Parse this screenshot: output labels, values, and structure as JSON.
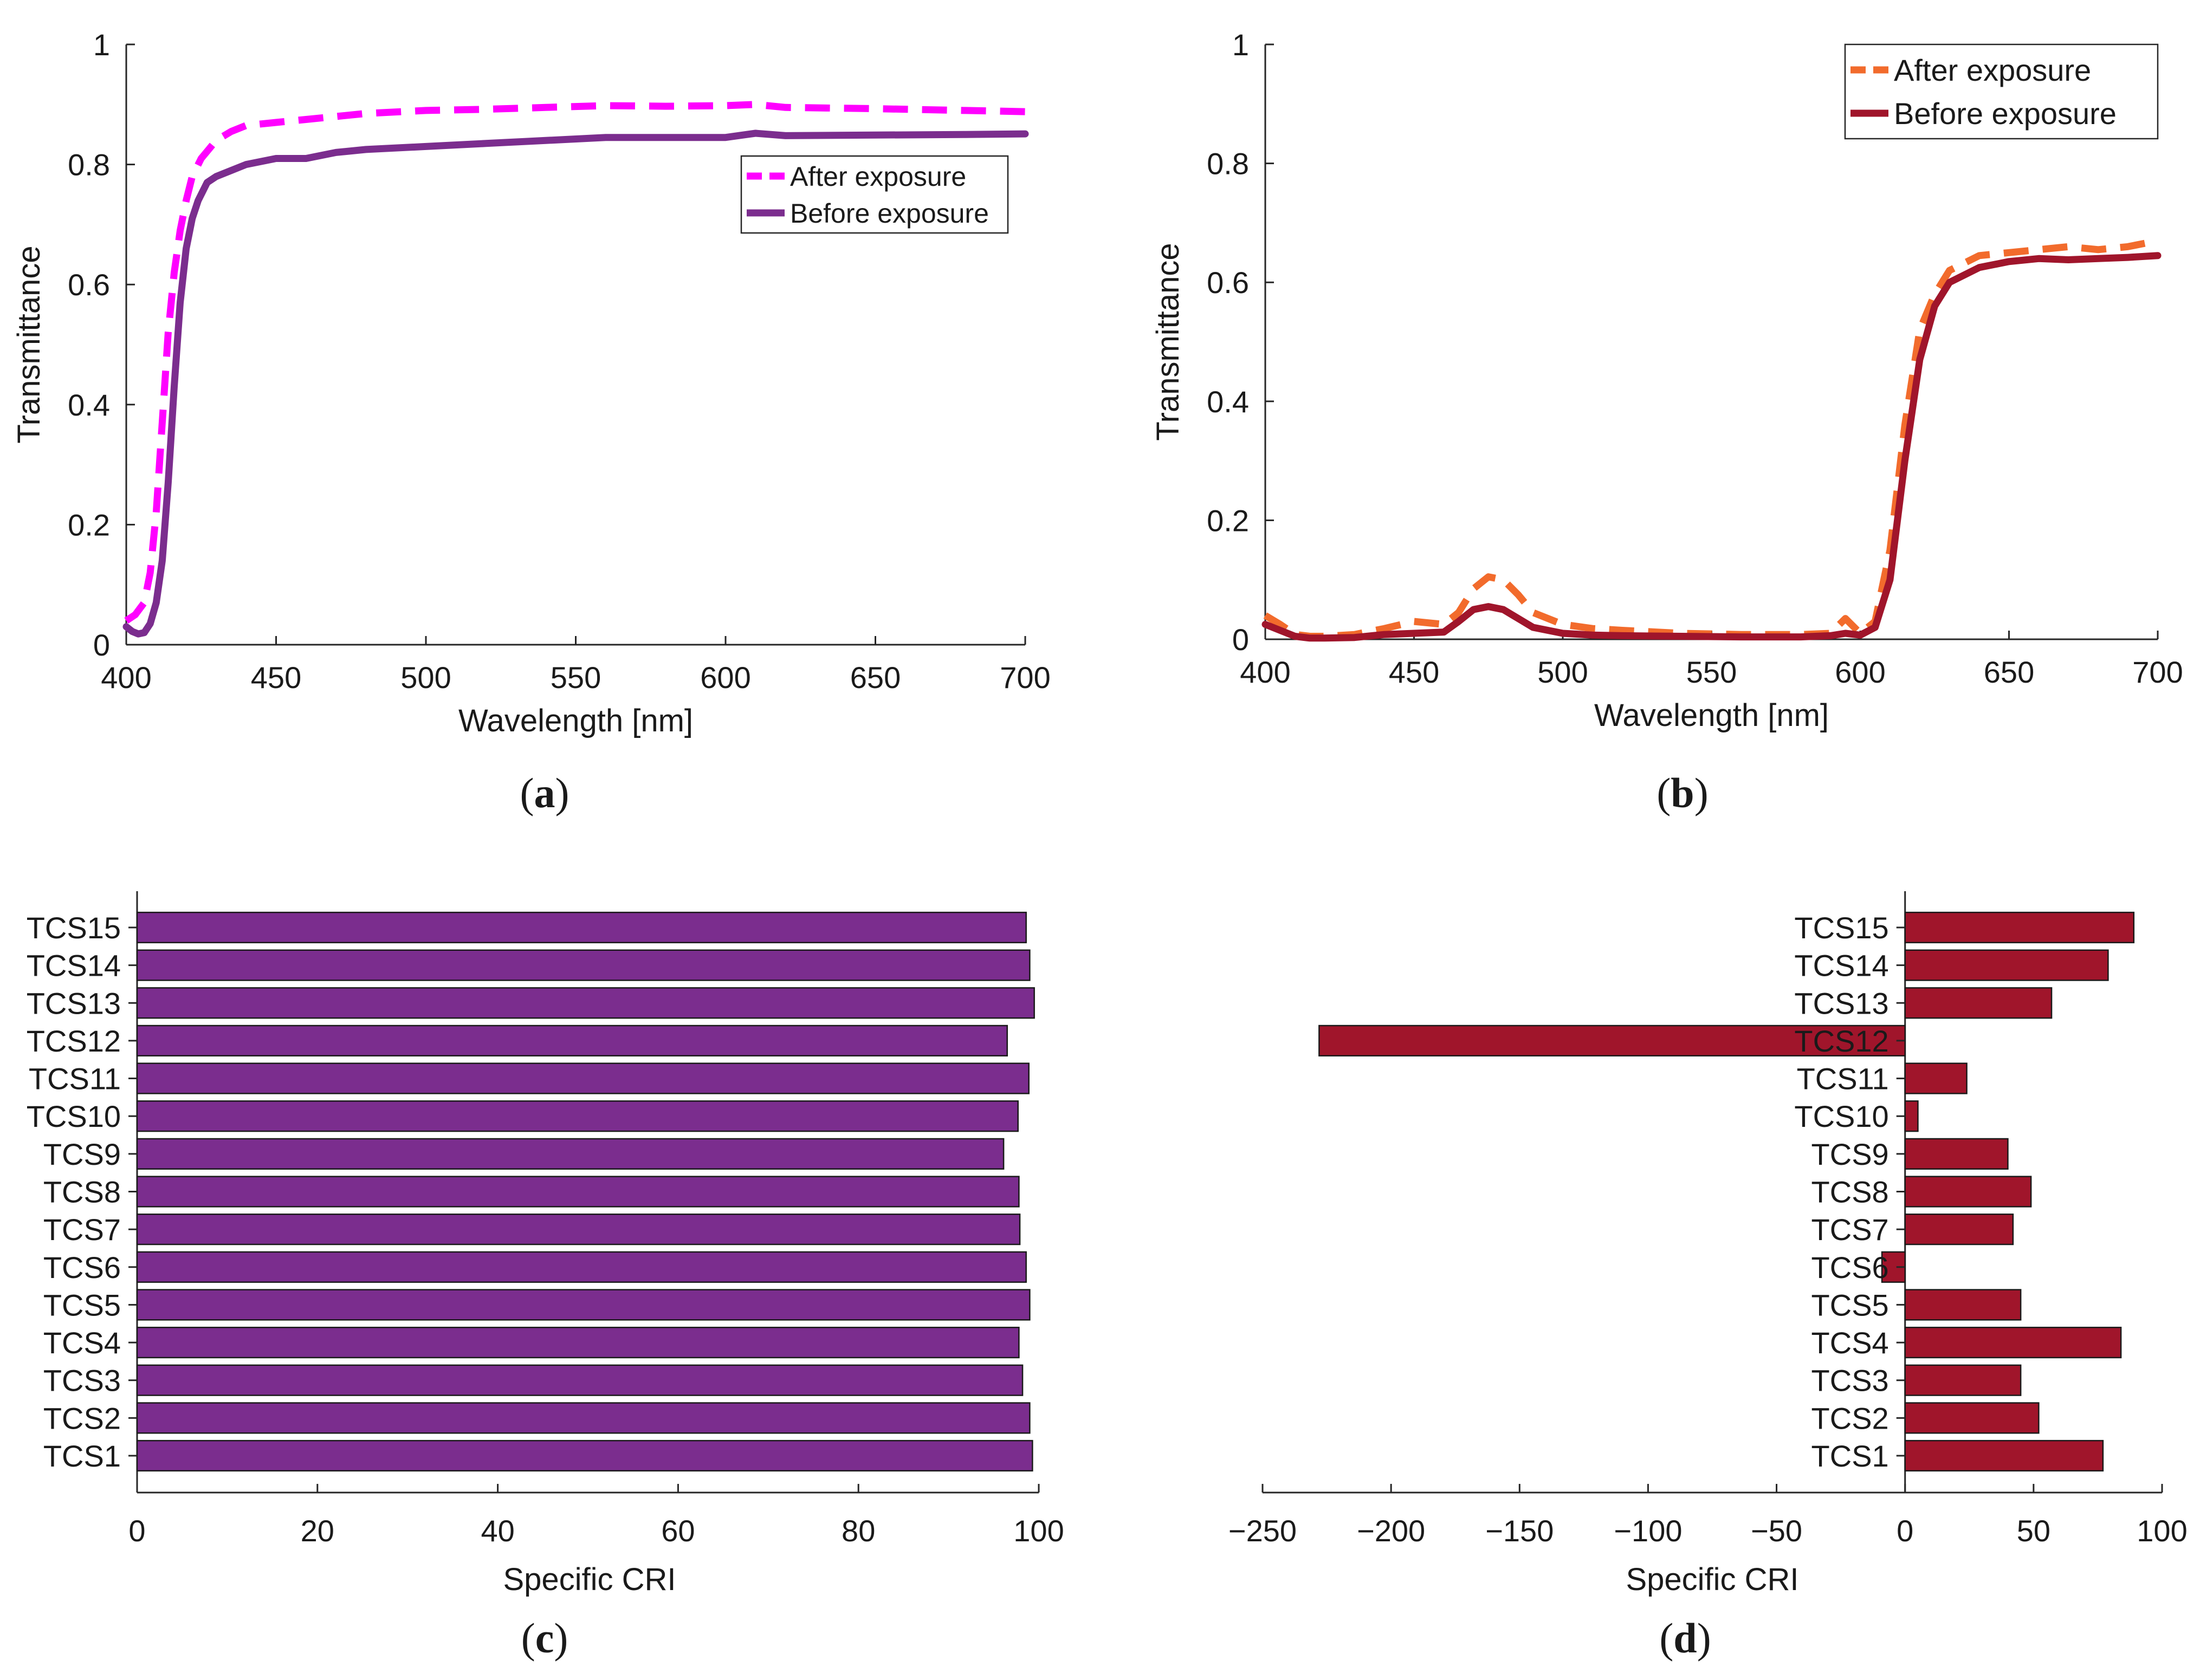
{
  "chart_data": [
    {
      "id": "a",
      "type": "line",
      "caption_letter": "a",
      "xlabel": "Wavelength [nm]",
      "ylabel": "Transmittance",
      "xlim": [
        400,
        700
      ],
      "ylim": [
        0,
        1
      ],
      "xticks": [
        400,
        450,
        500,
        550,
        600,
        650,
        700
      ],
      "xtick_labels": [
        "400",
        "450",
        "500",
        "550",
        "600",
        "650",
        "700"
      ],
      "yticks": [
        0,
        0.2,
        0.4,
        0.6,
        0.8,
        1
      ],
      "ytick_labels": [
        "0",
        "0.2",
        "0.4",
        "0.6",
        "0.8",
        "1"
      ],
      "legend_position": "top-right-inside",
      "series": [
        {
          "name": "After exposure",
          "color": "#ff00ff",
          "style": "dashed",
          "x": [
            400,
            403,
            406,
            408,
            410,
            412,
            414,
            416,
            418,
            420,
            422,
            425,
            430,
            435,
            440,
            450,
            460,
            470,
            480,
            500,
            520,
            540,
            560,
            580,
            600,
            610,
            620,
            650,
            680,
            700
          ],
          "y": [
            0.04,
            0.05,
            0.07,
            0.12,
            0.22,
            0.37,
            0.52,
            0.62,
            0.69,
            0.74,
            0.78,
            0.81,
            0.84,
            0.855,
            0.865,
            0.87,
            0.875,
            0.88,
            0.885,
            0.89,
            0.892,
            0.895,
            0.898,
            0.897,
            0.898,
            0.9,
            0.895,
            0.893,
            0.89,
            0.888
          ]
        },
        {
          "name": "Before exposure",
          "color": "#7b2d8e",
          "style": "solid",
          "x": [
            400,
            402,
            404,
            406,
            408,
            410,
            412,
            414,
            416,
            418,
            420,
            422,
            424,
            427,
            430,
            435,
            440,
            450,
            460,
            470,
            480,
            500,
            520,
            540,
            560,
            580,
            600,
            610,
            620,
            650,
            680,
            700
          ],
          "y": [
            0.03,
            0.022,
            0.018,
            0.02,
            0.035,
            0.07,
            0.14,
            0.27,
            0.43,
            0.57,
            0.66,
            0.71,
            0.74,
            0.77,
            0.78,
            0.79,
            0.8,
            0.81,
            0.81,
            0.82,
            0.825,
            0.83,
            0.835,
            0.84,
            0.845,
            0.845,
            0.845,
            0.852,
            0.848,
            0.849,
            0.85,
            0.851
          ]
        }
      ]
    },
    {
      "id": "b",
      "type": "line",
      "caption_letter": "b",
      "xlabel": "Wavelength [nm]",
      "ylabel": "Transmittance",
      "xlim": [
        400,
        700
      ],
      "ylim": [
        0,
        1
      ],
      "xticks": [
        400,
        450,
        500,
        550,
        600,
        650,
        700
      ],
      "xtick_labels": [
        "400",
        "450",
        "500",
        "550",
        "600",
        "650",
        "700"
      ],
      "yticks": [
        0,
        0.2,
        0.4,
        0.6,
        0.8,
        1
      ],
      "ytick_labels": [
        "0",
        "0.2",
        "0.4",
        "0.6",
        "0.8",
        "1"
      ],
      "legend_position": "top-right-corner",
      "series": [
        {
          "name": "After exposure",
          "color": "#f26b2c",
          "style": "dashed",
          "x": [
            400,
            405,
            410,
            415,
            420,
            430,
            440,
            450,
            460,
            465,
            470,
            475,
            480,
            485,
            490,
            500,
            510,
            520,
            540,
            560,
            580,
            590,
            595,
            600,
            605,
            610,
            615,
            620,
            625,
            630,
            640,
            650,
            660,
            670,
            680,
            690,
            700
          ],
          "y": [
            0.04,
            0.025,
            0.008,
            0.005,
            0.005,
            0.008,
            0.018,
            0.03,
            0.025,
            0.045,
            0.085,
            0.105,
            0.1,
            0.075,
            0.045,
            0.025,
            0.018,
            0.015,
            0.01,
            0.008,
            0.008,
            0.01,
            0.035,
            0.01,
            0.03,
            0.15,
            0.36,
            0.52,
            0.58,
            0.62,
            0.645,
            0.65,
            0.655,
            0.66,
            0.655,
            0.66,
            0.67
          ]
        },
        {
          "name": "Before exposure",
          "color": "#a0152b",
          "style": "solid",
          "x": [
            400,
            405,
            410,
            415,
            420,
            430,
            440,
            450,
            460,
            465,
            470,
            475,
            480,
            485,
            490,
            500,
            510,
            520,
            540,
            560,
            580,
            590,
            595,
            600,
            605,
            610,
            615,
            620,
            625,
            630,
            640,
            650,
            660,
            670,
            680,
            690,
            700
          ],
          "y": [
            0.025,
            0.015,
            0.005,
            0.002,
            0.002,
            0.003,
            0.008,
            0.01,
            0.012,
            0.03,
            0.05,
            0.055,
            0.05,
            0.035,
            0.02,
            0.01,
            0.007,
            0.006,
            0.005,
            0.004,
            0.004,
            0.006,
            0.01,
            0.007,
            0.02,
            0.1,
            0.3,
            0.47,
            0.56,
            0.6,
            0.625,
            0.635,
            0.64,
            0.638,
            0.64,
            0.642,
            0.645
          ]
        }
      ]
    },
    {
      "id": "c",
      "type": "bar",
      "orientation": "horizontal",
      "caption_letter": "c",
      "xlabel": "Specific CRI",
      "xlim": [
        0,
        100
      ],
      "xticks": [
        0,
        20,
        40,
        60,
        80,
        100
      ],
      "xtick_labels": [
        "0",
        "20",
        "40",
        "60",
        "80",
        "100"
      ],
      "bar_color": "#7b2d8e",
      "categories": [
        "TCS1",
        "TCS2",
        "TCS3",
        "TCS4",
        "TCS5",
        "TCS6",
        "TCS7",
        "TCS8",
        "TCS9",
        "TCS10",
        "TCS11",
        "TCS12",
        "TCS13",
        "TCS14",
        "TCS15"
      ],
      "values": [
        99.3,
        99.0,
        98.2,
        97.8,
        99.0,
        98.6,
        97.9,
        97.8,
        96.1,
        97.7,
        98.9,
        96.5,
        99.5,
        99.0,
        98.6
      ]
    },
    {
      "id": "d",
      "type": "bar",
      "orientation": "horizontal",
      "caption_letter": "d",
      "xlabel": "Specific CRI",
      "xlim": [
        -250,
        100
      ],
      "xticks": [
        -250,
        -200,
        -150,
        -100,
        -50,
        0,
        50,
        100
      ],
      "xtick_labels": [
        "−250",
        "−200",
        "−150",
        "−100",
        "−50",
        "0",
        "50",
        "100"
      ],
      "bar_color": "#a0152b",
      "categories": [
        "TCS1",
        "TCS2",
        "TCS3",
        "TCS4",
        "TCS5",
        "TCS6",
        "TCS7",
        "TCS8",
        "TCS9",
        "TCS10",
        "TCS11",
        "TCS12",
        "TCS13",
        "TCS14",
        "TCS15"
      ],
      "values": [
        77,
        52,
        45,
        84,
        45,
        -9,
        42,
        49,
        40,
        5,
        24,
        -228,
        57,
        79,
        89
      ]
    }
  ]
}
